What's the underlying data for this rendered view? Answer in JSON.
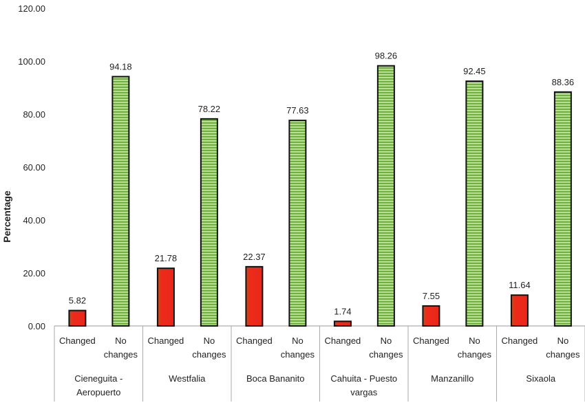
{
  "chart_data": {
    "type": "bar",
    "title": "",
    "ylabel": "Percentage",
    "xlabel": "",
    "ylim": [
      0,
      120
    ],
    "yticks": [
      "0.00",
      "20.00",
      "40.00",
      "60.00",
      "80.00",
      "100.00",
      "120.00"
    ],
    "grid": false,
    "legend": "none",
    "groups": [
      "Cieneguita - Aeropuerto",
      "Westfalia",
      "Boca Bananito",
      "Cahuita - Puesto vargas",
      "Manzanillo",
      "Sixaola"
    ],
    "group_lines": [
      [
        "Cieneguita -",
        "Aeropuerto"
      ],
      [
        "Westfalia"
      ],
      [
        "Boca Bananito"
      ],
      [
        "Cahuita - Puesto",
        "vargas"
      ],
      [
        "Manzanillo"
      ],
      [
        "Sixaola"
      ]
    ],
    "subcategories": [
      "Changed",
      "No changes"
    ],
    "subcategory_lines": [
      [
        "Changed"
      ],
      [
        "No",
        "changes"
      ]
    ],
    "series": [
      {
        "name": "Changed",
        "color": "#e8281a",
        "values": [
          5.82,
          21.78,
          22.37,
          1.74,
          7.55,
          11.64
        ],
        "labels": [
          "5.82",
          "21.78",
          "22.37",
          "1.74",
          "7.55",
          "11.64"
        ]
      },
      {
        "name": "No changes",
        "color": "#7cc242",
        "values": [
          94.18,
          78.22,
          77.63,
          98.26,
          92.45,
          88.36
        ],
        "labels": [
          "94.18",
          "78.22",
          "77.63",
          "98.26",
          "92.45",
          "88.36"
        ]
      }
    ]
  }
}
